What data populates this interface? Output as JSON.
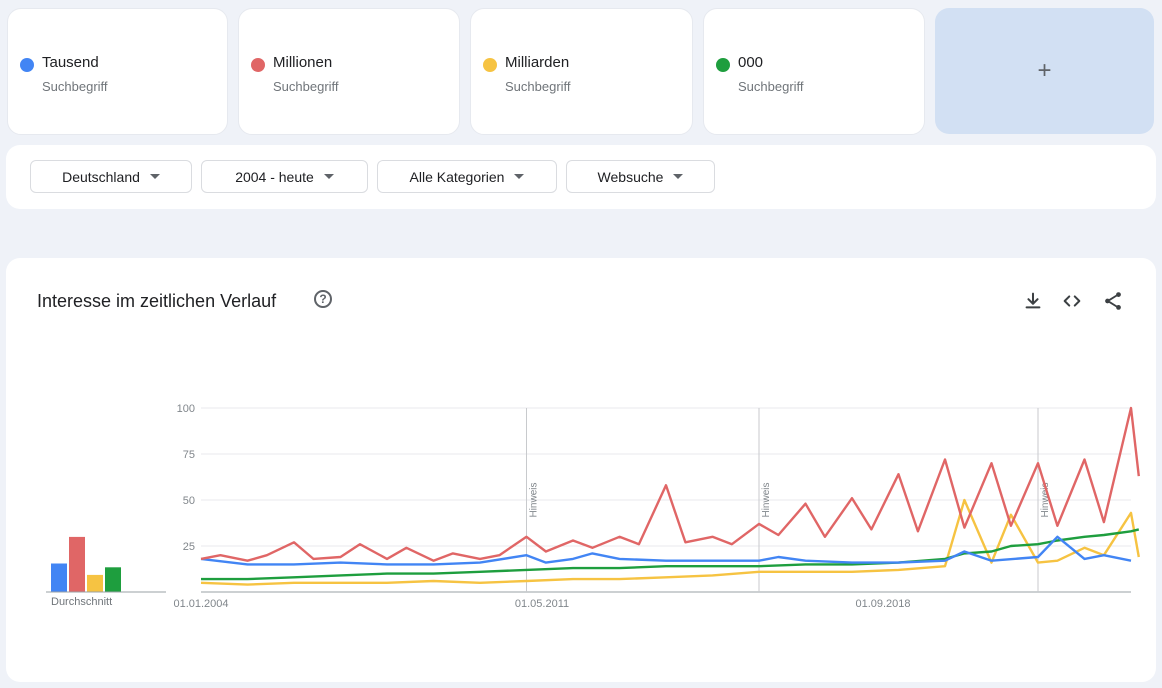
{
  "terms": [
    {
      "name": "Tausend",
      "sub": "Suchbegriff",
      "color": "#4285f4"
    },
    {
      "name": "Millionen",
      "sub": "Suchbegriff",
      "color": "#e06666"
    },
    {
      "name": "Milliarden",
      "sub": "Suchbegriff",
      "color": "#f6c342"
    },
    {
      "name": "000",
      "sub": "Suchbegriff",
      "color": "#1e9e3e"
    }
  ],
  "add_label": "+",
  "filters": {
    "region": "Deutschland",
    "time": "2004 - heute",
    "category": "Alle Kategorien",
    "search_type": "Websuche"
  },
  "chart_card": {
    "title": "Interesse im zeitlichen Verlauf",
    "help_icon": "help-circle-icon",
    "tools": [
      "download-icon",
      "embed-icon",
      "share-icon"
    ],
    "average_label": "Durchschnitt"
  },
  "chart_data": {
    "type": "line",
    "x_range": [
      "2004-01",
      "2024-01"
    ],
    "x_tick_labels": [
      "01.01.2004",
      "01.05.2011",
      "01.09.2018"
    ],
    "y_ticks": [
      25,
      50,
      75,
      100
    ],
    "ylim": [
      0,
      100
    ],
    "grid": true,
    "annotations": [
      {
        "label": "Hinweis",
        "date": "2011-01"
      },
      {
        "label": "Hinweis",
        "date": "2016-01"
      },
      {
        "label": "Hinweis",
        "date": "2022-01"
      }
    ],
    "averages": [
      {
        "name": "Tausend",
        "value": 15
      },
      {
        "name": "Millionen",
        "value": 29
      },
      {
        "name": "Milliarden",
        "value": 9
      },
      {
        "name": "000",
        "value": 13
      }
    ],
    "series": [
      {
        "name": "Tausend",
        "color": "#4285f4",
        "points": [
          [
            "2004-01",
            18
          ],
          [
            "2005-01",
            15
          ],
          [
            "2006-01",
            15
          ],
          [
            "2007-01",
            16
          ],
          [
            "2008-01",
            15
          ],
          [
            "2009-01",
            15
          ],
          [
            "2010-01",
            16
          ],
          [
            "2011-01",
            20
          ],
          [
            "2011-06",
            16
          ],
          [
            "2012-01",
            18
          ],
          [
            "2012-06",
            21
          ],
          [
            "2013-01",
            18
          ],
          [
            "2014-01",
            17
          ],
          [
            "2015-01",
            17
          ],
          [
            "2016-01",
            17
          ],
          [
            "2016-06",
            19
          ],
          [
            "2017-01",
            17
          ],
          [
            "2018-01",
            16
          ],
          [
            "2019-01",
            16
          ],
          [
            "2020-01",
            17
          ],
          [
            "2020-06",
            22
          ],
          [
            "2021-01",
            17
          ],
          [
            "2022-01",
            19
          ],
          [
            "2022-06",
            30
          ],
          [
            "2023-01",
            18
          ],
          [
            "2023-06",
            20
          ],
          [
            "2024-01",
            17
          ]
        ]
      },
      {
        "name": "Millionen",
        "color": "#e06666",
        "points": [
          [
            "2004-01",
            18
          ],
          [
            "2004-06",
            20
          ],
          [
            "2005-01",
            17
          ],
          [
            "2005-06",
            20
          ],
          [
            "2006-01",
            27
          ],
          [
            "2006-06",
            18
          ],
          [
            "2007-01",
            19
          ],
          [
            "2007-06",
            26
          ],
          [
            "2008-01",
            18
          ],
          [
            "2008-06",
            24
          ],
          [
            "2009-01",
            17
          ],
          [
            "2009-06",
            21
          ],
          [
            "2010-01",
            18
          ],
          [
            "2010-06",
            20
          ],
          [
            "2011-01",
            30
          ],
          [
            "2011-06",
            22
          ],
          [
            "2012-01",
            28
          ],
          [
            "2012-06",
            24
          ],
          [
            "2013-01",
            30
          ],
          [
            "2013-06",
            26
          ],
          [
            "2014-01",
            58
          ],
          [
            "2014-06",
            27
          ],
          [
            "2015-01",
            30
          ],
          [
            "2015-06",
            26
          ],
          [
            "2016-01",
            37
          ],
          [
            "2016-06",
            31
          ],
          [
            "2017-01",
            48
          ],
          [
            "2017-06",
            30
          ],
          [
            "2018-01",
            51
          ],
          [
            "2018-06",
            34
          ],
          [
            "2019-01",
            64
          ],
          [
            "2019-06",
            33
          ],
          [
            "2020-01",
            72
          ],
          [
            "2020-06",
            35
          ],
          [
            "2021-01",
            70
          ],
          [
            "2021-06",
            36
          ],
          [
            "2022-01",
            70
          ],
          [
            "2022-06",
            36
          ],
          [
            "2023-01",
            72
          ],
          [
            "2023-06",
            38
          ],
          [
            "2024-01",
            100
          ],
          [
            "2024-03",
            63
          ]
        ]
      },
      {
        "name": "Milliarden",
        "color": "#f6c342",
        "points": [
          [
            "2004-01",
            5
          ],
          [
            "2005-01",
            4
          ],
          [
            "2006-01",
            5
          ],
          [
            "2007-01",
            5
          ],
          [
            "2008-01",
            5
          ],
          [
            "2009-01",
            6
          ],
          [
            "2010-01",
            5
          ],
          [
            "2011-01",
            6
          ],
          [
            "2012-01",
            7
          ],
          [
            "2013-01",
            7
          ],
          [
            "2014-01",
            8
          ],
          [
            "2015-01",
            9
          ],
          [
            "2016-01",
            11
          ],
          [
            "2017-01",
            11
          ],
          [
            "2018-01",
            11
          ],
          [
            "2019-01",
            12
          ],
          [
            "2020-01",
            14
          ],
          [
            "2020-06",
            50
          ],
          [
            "2021-01",
            16
          ],
          [
            "2021-06",
            42
          ],
          [
            "2022-01",
            16
          ],
          [
            "2022-06",
            17
          ],
          [
            "2023-01",
            24
          ],
          [
            "2023-06",
            20
          ],
          [
            "2024-01",
            43
          ],
          [
            "2024-03",
            19
          ]
        ]
      },
      {
        "name": "000",
        "color": "#1e9e3e",
        "points": [
          [
            "2004-01",
            7
          ],
          [
            "2005-01",
            7
          ],
          [
            "2006-01",
            8
          ],
          [
            "2007-01",
            9
          ],
          [
            "2008-01",
            10
          ],
          [
            "2009-01",
            10
          ],
          [
            "2010-01",
            11
          ],
          [
            "2011-01",
            12
          ],
          [
            "2012-01",
            13
          ],
          [
            "2013-01",
            13
          ],
          [
            "2014-01",
            14
          ],
          [
            "2015-01",
            14
          ],
          [
            "2016-01",
            14
          ],
          [
            "2017-01",
            15
          ],
          [
            "2018-01",
            15
          ],
          [
            "2019-01",
            16
          ],
          [
            "2020-01",
            18
          ],
          [
            "2020-06",
            21
          ],
          [
            "2021-01",
            22
          ],
          [
            "2021-06",
            25
          ],
          [
            "2022-01",
            26
          ],
          [
            "2022-06",
            28
          ],
          [
            "2023-01",
            30
          ],
          [
            "2023-06",
            31
          ],
          [
            "2024-01",
            33
          ],
          [
            "2024-03",
            34
          ]
        ]
      }
    ]
  }
}
